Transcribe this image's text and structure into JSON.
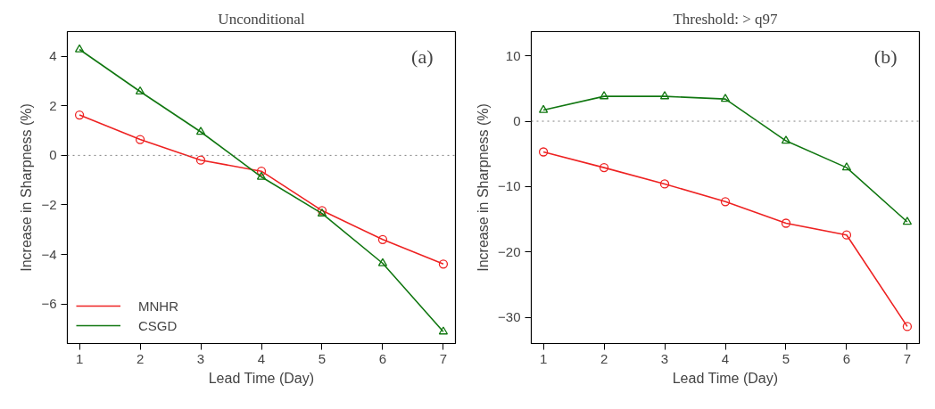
{
  "chart_data": [
    {
      "type": "line",
      "title": "Unconditional",
      "xlabel": "Lead Time (Day)",
      "ylabel": "Increase in Sharpness (%)",
      "annotations": [
        "(a)"
      ],
      "x": [
        1,
        2,
        3,
        4,
        5,
        6,
        7
      ],
      "xlim": [
        0.8,
        7.2
      ],
      "xticks": [
        1,
        2,
        3,
        4,
        5,
        6,
        7
      ],
      "ylim": [
        -7.6,
        5.0
      ],
      "yticks": [
        -6,
        -4,
        -2,
        0,
        2,
        4
      ],
      "grid": false,
      "legend": "bottom left",
      "line_style": "solid",
      "ref_lines": [
        {
          "axis": "y",
          "value": 0,
          "color": "#808080",
          "line_style": "dotted"
        }
      ],
      "series": [
        {
          "name": "MNHR",
          "color": "#ee2222",
          "marker": "circle",
          "values": [
            1.63,
            0.64,
            -0.19,
            -0.64,
            -2.23,
            -3.4,
            -4.39
          ]
        },
        {
          "name": "CSGD",
          "color": "#117711",
          "marker": "triangle",
          "values": [
            4.28,
            2.58,
            0.95,
            -0.87,
            -2.35,
            -4.36,
            -7.12
          ]
        }
      ]
    },
    {
      "type": "line",
      "title": "Threshold: > q97",
      "xlabel": "Lead Time (Day)",
      "ylabel": "Increase in Sharpness (%)",
      "annotations": [
        "(b)"
      ],
      "x": [
        1,
        2,
        3,
        4,
        5,
        6,
        7
      ],
      "xlim": [
        0.8,
        7.2
      ],
      "xticks": [
        1,
        2,
        3,
        4,
        5,
        6,
        7
      ],
      "ylim": [
        -34.0,
        13.7
      ],
      "yticks": [
        -30,
        -20,
        -10,
        0,
        10
      ],
      "grid": false,
      "legend": false,
      "line_style": "solid",
      "ref_lines": [
        {
          "axis": "y",
          "value": 0,
          "color": "#808080",
          "line_style": "dotted"
        }
      ],
      "series": [
        {
          "color": "#ee2222",
          "marker": "circle",
          "values": [
            -4.7,
            -7.1,
            -9.6,
            -12.3,
            -15.6,
            -17.4,
            -31.4
          ]
        },
        {
          "color": "#117711",
          "marker": "triangle",
          "values": [
            1.7,
            3.8,
            3.8,
            3.4,
            -3.0,
            -7.1,
            -15.4
          ]
        }
      ]
    }
  ]
}
